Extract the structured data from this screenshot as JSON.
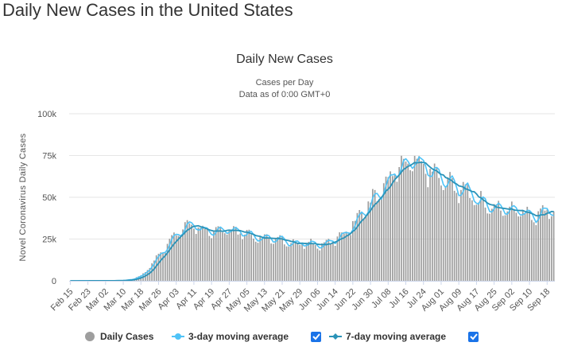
{
  "page_title": "Daily New Cases in the United States",
  "chart_data": {
    "type": "bar",
    "title": "Daily New Cases",
    "subtitle_lines": [
      "Cases per Day",
      "Data as of 0:00 GMT+0"
    ],
    "ylabel": "Novel Coronavirus Daily Cases",
    "xlabel": "",
    "ylim": [
      0,
      100000
    ],
    "y_ticks": [
      0,
      25000,
      50000,
      75000,
      100000
    ],
    "y_tick_labels": [
      "0",
      "25k",
      "50k",
      "75k",
      "100k"
    ],
    "x_tick_labels": [
      "Feb 15",
      "Feb 23",
      "Mar 02",
      "Mar 10",
      "Mar 18",
      "Mar 26",
      "Apr 03",
      "Apr 11",
      "Apr 19",
      "Apr 27",
      "May 05",
      "May 13",
      "May 21",
      "May 29",
      "Jun 06",
      "Jun 14",
      "Jun 22",
      "Jun 30",
      "Jul 08",
      "Jul 16",
      "Jul 24",
      "Aug 01",
      "Aug 09",
      "Aug 17",
      "Aug 25",
      "Sep 02",
      "Sep 10",
      "Sep 18"
    ],
    "grid": true,
    "legend_position": "bottom",
    "series": [
      {
        "name": "Daily Cases",
        "kind": "bar",
        "color": "#9e9e9e"
      },
      {
        "name": "3-day moving average",
        "kind": "line",
        "color": "#4fc3f7",
        "checked": true
      },
      {
        "name": "7-day moving average",
        "kind": "line",
        "color": "#2a93b8",
        "checked": true
      }
    ],
    "anchors": [
      [
        "Feb 15",
        0
      ],
      [
        "Mar 02",
        50
      ],
      [
        "Mar 10",
        200
      ],
      [
        "Mar 14",
        1000
      ],
      [
        "Mar 18",
        3000
      ],
      [
        "Mar 22",
        8000
      ],
      [
        "Mar 26",
        15000
      ],
      [
        "Mar 30",
        21000
      ],
      [
        "Apr 03",
        29000
      ],
      [
        "Apr 07",
        32000
      ],
      [
        "Apr 11",
        33000
      ],
      [
        "Apr 15",
        30500
      ],
      [
        "Apr 19",
        30000
      ],
      [
        "Apr 23",
        30000
      ],
      [
        "Apr 27",
        31000
      ],
      [
        "May 01",
        29500
      ],
      [
        "May 05",
        28000
      ],
      [
        "May 09",
        26000
      ],
      [
        "May 13",
        25000
      ],
      [
        "May 17",
        24500
      ],
      [
        "May 21",
        23500
      ],
      [
        "May 25",
        22500
      ],
      [
        "May 29",
        22000
      ],
      [
        "Jun 02",
        21500
      ],
      [
        "Jun 06",
        21500
      ],
      [
        "Jun 10",
        22000
      ],
      [
        "Jun 14",
        24000
      ],
      [
        "Jun 18",
        28000
      ],
      [
        "Jun 22",
        33000
      ],
      [
        "Jun 26",
        40000
      ],
      [
        "Jun 30",
        46000
      ],
      [
        "Jul 04",
        52000
      ],
      [
        "Jul 08",
        58000
      ],
      [
        "Jul 12",
        65000
      ],
      [
        "Jul 16",
        70000
      ],
      [
        "Jul 20",
        69000
      ],
      [
        "Jul 24",
        68000
      ],
      [
        "Jul 28",
        64000
      ],
      [
        "Aug 01",
        60000
      ],
      [
        "Aug 05",
        56000
      ],
      [
        "Aug 09",
        54000
      ],
      [
        "Aug 13",
        52000
      ],
      [
        "Aug 17",
        47000
      ],
      [
        "Aug 21",
        45000
      ],
      [
        "Aug 25",
        43000
      ],
      [
        "Aug 29",
        42000
      ],
      [
        "Sep 02",
        42000
      ],
      [
        "Sep 06",
        41000
      ],
      [
        "Sep 10",
        37000
      ],
      [
        "Sep 14",
        39000
      ],
      [
        "Sep 18",
        41000
      ],
      [
        "Sep 21",
        41000
      ]
    ]
  }
}
